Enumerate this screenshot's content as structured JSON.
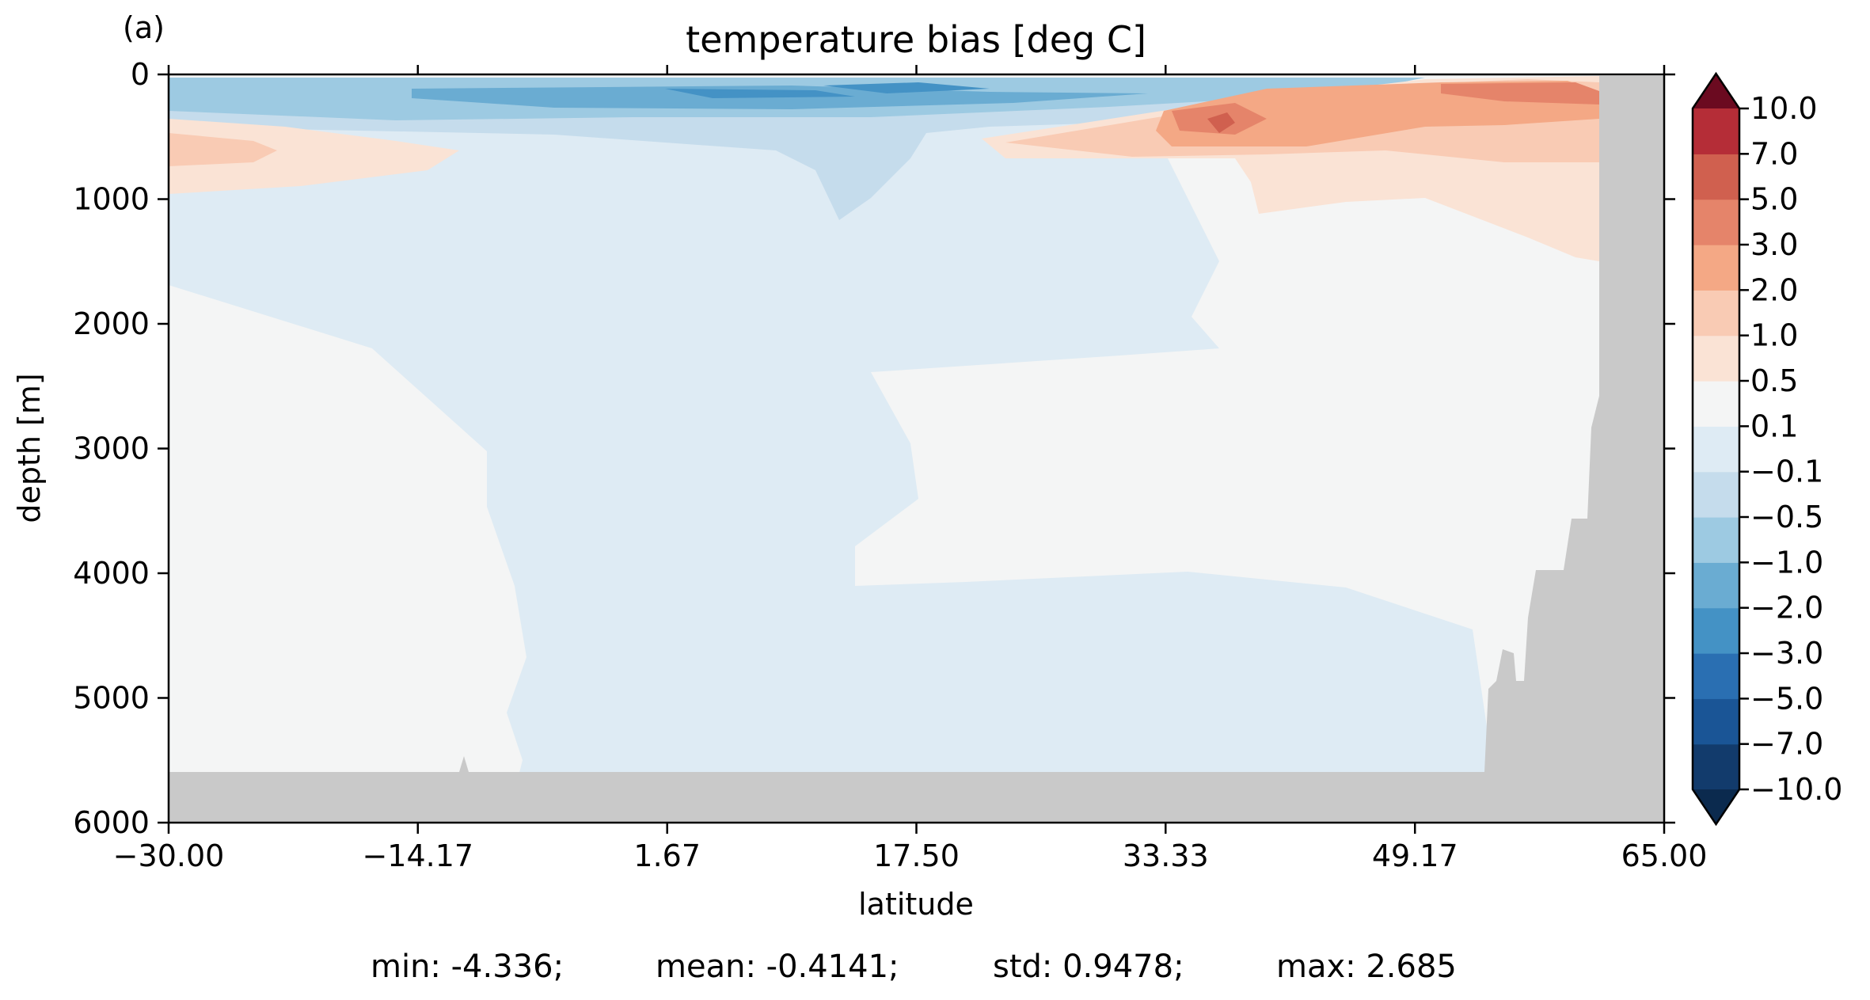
{
  "panel_label": "(a)",
  "chart_data": {
    "type": "heatmap",
    "title": "temperature bias [deg C]",
    "xlabel": "latitude",
    "ylabel": "depth [m]",
    "xlim": [
      -30.0,
      65.0
    ],
    "ylim": [
      6000,
      0
    ],
    "xticks": [
      -30.0,
      -14.17,
      1.67,
      17.5,
      33.33,
      49.17,
      65.0
    ],
    "xtick_labels": [
      "−30.00",
      "−14.17",
      "1.67",
      "17.50",
      "33.33",
      "49.17",
      "65.00"
    ],
    "yticks": [
      0,
      1000,
      2000,
      3000,
      4000,
      5000,
      6000
    ],
    "ytick_labels": [
      "0",
      "1000",
      "2000",
      "3000",
      "4000",
      "5000",
      "6000"
    ],
    "colorbar": {
      "levels": [
        -10.0,
        -7.0,
        -5.0,
        -3.0,
        -2.0,
        -1.0,
        -0.5,
        -0.1,
        0.1,
        0.5,
        1.0,
        2.0,
        3.0,
        5.0,
        7.0,
        10.0
      ],
      "tick_labels": [
        "−10.0",
        "−7.0",
        "−5.0",
        "−3.0",
        "−2.0",
        "−1.0",
        "−0.5",
        "−0.1",
        "0.1",
        "0.5",
        "1.0",
        "2.0",
        "3.0",
        "5.0",
        "7.0",
        "10.0"
      ],
      "colors": [
        "#123b6c",
        "#1a5596",
        "#2a6fb2",
        "#4492c5",
        "#6aacd2",
        "#9dcae2",
        "#c5dcec",
        "#deebf4",
        "#f4f5f5",
        "#fae3d5",
        "#f9cbb4",
        "#f4a885",
        "#e5846a",
        "#d0604f",
        "#b52d37",
        "#8c1227"
      ],
      "extend_low_color": "#0b2a4e",
      "extend_high_color": "#6b0a20",
      "extend": "both"
    },
    "land_mask_color": "#c9c9c9",
    "stats": {
      "min": "min: -4.336;",
      "mean": "mean: -0.4141;",
      "std": "std: 0.9478;",
      "max": "max: 2.685"
    }
  }
}
